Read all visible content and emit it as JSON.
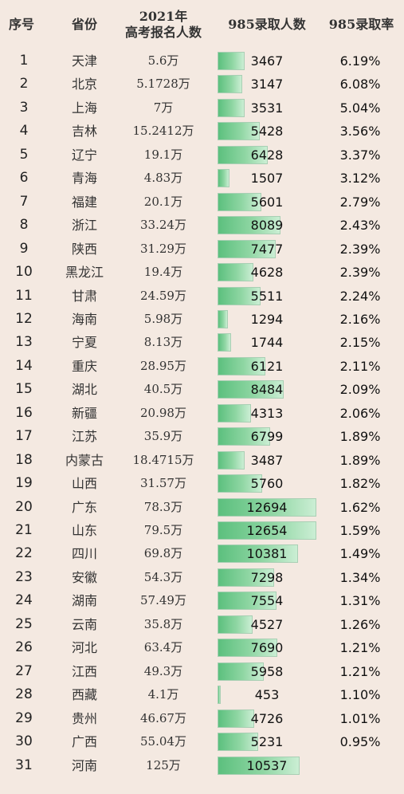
{
  "chart_data": {
    "type": "table",
    "columns": [
      "序号",
      "省份",
      "2021年\n高考报名人数",
      "985录取人数",
      "985录取率"
    ],
    "rows": [
      [
        "1",
        "天津",
        "5.6万",
        3467,
        "6.19%"
      ],
      [
        "2",
        "北京",
        "5.1728万",
        3147,
        "6.08%"
      ],
      [
        "3",
        "上海",
        "7万",
        3531,
        "5.04%"
      ],
      [
        "4",
        "吉林",
        "15.2412万",
        5428,
        "3.56%"
      ],
      [
        "5",
        "辽宁",
        "19.1万",
        6428,
        "3.37%"
      ],
      [
        "6",
        "青海",
        "4.83万",
        1507,
        "3.12%"
      ],
      [
        "7",
        "福建",
        "20.1万",
        5601,
        "2.79%"
      ],
      [
        "8",
        "浙江",
        "33.24万",
        8089,
        "2.43%"
      ],
      [
        "9",
        "陕西",
        "31.29万",
        7477,
        "2.39%"
      ],
      [
        "10",
        "黑龙江",
        "19.4万",
        4628,
        "2.39%"
      ],
      [
        "11",
        "甘肃",
        "24.59万",
        5511,
        "2.24%"
      ],
      [
        "12",
        "海南",
        "5.98万",
        1294,
        "2.16%"
      ],
      [
        "13",
        "宁夏",
        "8.13万",
        1744,
        "2.15%"
      ],
      [
        "14",
        "重庆",
        "28.95万",
        6121,
        "2.11%"
      ],
      [
        "15",
        "湖北",
        "40.5万",
        8484,
        "2.09%"
      ],
      [
        "16",
        "新疆",
        "20.98万",
        4313,
        "2.06%"
      ],
      [
        "17",
        "江苏",
        "35.9万",
        6799,
        "1.89%"
      ],
      [
        "18",
        "内蒙古",
        "18.4715万",
        3487,
        "1.89%"
      ],
      [
        "19",
        "山西",
        "31.57万",
        5760,
        "1.82%"
      ],
      [
        "20",
        "广东",
        "78.3万",
        12694,
        "1.62%"
      ],
      [
        "21",
        "山东",
        "79.5万",
        12654,
        "1.59%"
      ],
      [
        "22",
        "四川",
        "69.8万",
        10381,
        "1.49%"
      ],
      [
        "23",
        "安徽",
        "54.3万",
        7298,
        "1.34%"
      ],
      [
        "24",
        "湖南",
        "57.49万",
        7554,
        "1.31%"
      ],
      [
        "25",
        "云南",
        "35.8万",
        4527,
        "1.26%"
      ],
      [
        "26",
        "河北",
        "63.4万",
        7690,
        "1.21%"
      ],
      [
        "27",
        "江西",
        "49.3万",
        5958,
        "1.21%"
      ],
      [
        "28",
        "西藏",
        "4.1万",
        453,
        "1.10%"
      ],
      [
        "29",
        "贵州",
        "46.67万",
        4726,
        "1.01%"
      ],
      [
        "30",
        "广西",
        "55.04万",
        5231,
        "0.95%"
      ],
      [
        "31",
        "河南",
        "125万",
        10537,
        ""
      ]
    ],
    "bar_column": "985录取人数",
    "bar_max": 12694,
    "colors": {
      "bar": "#5cc07e",
      "background": "#f4e9e1"
    }
  },
  "header": {
    "idx": "序号",
    "province": "省份",
    "registrants_line1": "2021年",
    "registrants_line2": "高考报名人数",
    "admitted": "985录取人数",
    "rate": "985录取率"
  }
}
